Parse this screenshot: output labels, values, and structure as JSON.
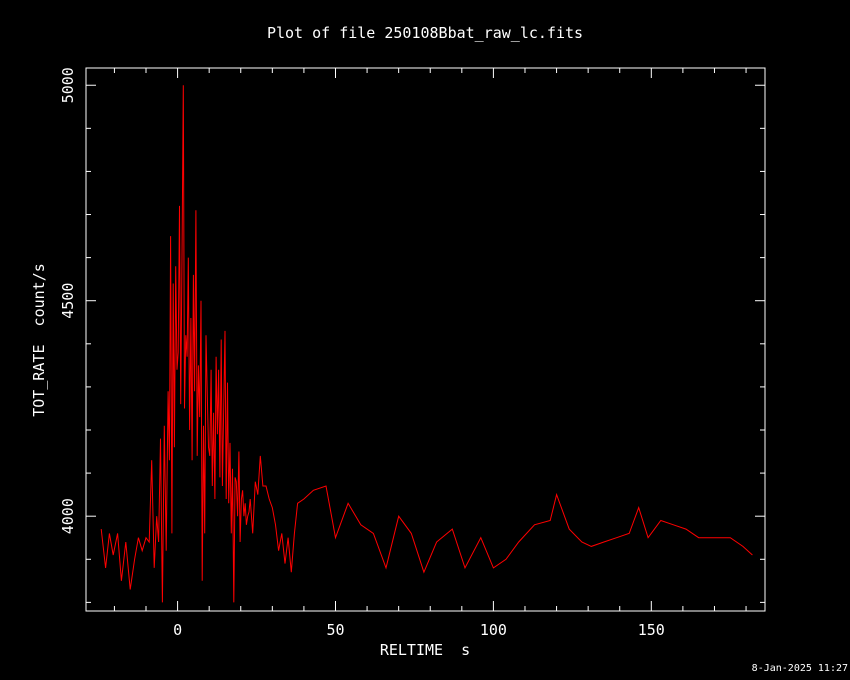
{
  "chart_data": {
    "type": "line",
    "title": "Plot of file 250108Bbat_raw_lc.fits",
    "xlabel": "RELTIME  s",
    "ylabel": "TOT_RATE  count/s",
    "xlim": [
      -29,
      186
    ],
    "ylim": [
      3780,
      5040
    ],
    "xticks": [
      "0",
      "50",
      "100",
      "150"
    ],
    "yticks": [
      "4000",
      "4500",
      "5000"
    ],
    "grid": false,
    "series": [
      {
        "color": "#ff0000",
        "x": [
          -24.2,
          -22.8,
          -21.6,
          -20.4,
          -19.0,
          -17.8,
          -16.4,
          -15.0,
          -13.6,
          -12.4,
          -11.2,
          -10.0,
          -9.0,
          -8.2,
          -7.4,
          -6.6,
          -6.0,
          -5.4,
          -4.8,
          -4.2,
          -3.6,
          -3.0,
          -2.6,
          -2.2,
          -1.8,
          -1.4,
          -1.0,
          -0.6,
          -0.2,
          0.2,
          0.6,
          1.0,
          1.4,
          1.8,
          2.2,
          2.6,
          3.0,
          3.4,
          3.8,
          4.2,
          4.6,
          5.0,
          5.4,
          5.8,
          6.2,
          6.6,
          7.0,
          7.4,
          7.8,
          8.2,
          8.6,
          9.0,
          9.4,
          9.8,
          10.2,
          10.6,
          11.0,
          11.4,
          11.8,
          12.2,
          12.6,
          13.0,
          13.4,
          13.8,
          14.2,
          14.6,
          15.0,
          15.4,
          15.8,
          16.2,
          16.6,
          17.0,
          17.4,
          17.8,
          18.2,
          18.6,
          19.0,
          19.4,
          19.8,
          20.2,
          20.6,
          21.0,
          21.4,
          21.8,
          22.2,
          22.6,
          23.0,
          23.8,
          24.6,
          25.4,
          26.2,
          27.0,
          28.0,
          29.0,
          30.0,
          31.0,
          32.0,
          33.0,
          34.0,
          35.0,
          36.0,
          37.0,
          38.0,
          40.0,
          43.0,
          47.0,
          50.0,
          54.0,
          58.0,
          62.0,
          66.0,
          70.0,
          74.0,
          78.0,
          82.0,
          87.0,
          91.0,
          96.0,
          100.0,
          104.0,
          108.0,
          113.0,
          118.0,
          120.0,
          124.0,
          128.0,
          131.0,
          135.0,
          139.0,
          143.0,
          146.0,
          149.0,
          153.0,
          157.0,
          161.0,
          165.0,
          170.0,
          175.0,
          179.0,
          182.0
        ],
        "y": [
          3970,
          3880,
          3960,
          3910,
          3960,
          3850,
          3940,
          3830,
          3900,
          3950,
          3920,
          3950,
          3940,
          4130,
          3880,
          4000,
          3940,
          4180,
          3800,
          4210,
          3920,
          4290,
          4130,
          4650,
          3960,
          4540,
          4160,
          4580,
          4340,
          4380,
          4720,
          4260,
          4600,
          5000,
          4250,
          4420,
          4370,
          4600,
          4200,
          4460,
          4130,
          4560,
          4290,
          4710,
          4140,
          4350,
          4230,
          4500,
          3850,
          4210,
          3960,
          4420,
          4280,
          4160,
          4140,
          4340,
          4070,
          4240,
          4040,
          4370,
          4190,
          4340,
          4090,
          4410,
          4070,
          4250,
          4430,
          4040,
          4310,
          4030,
          4170,
          3960,
          4110,
          3800,
          4090,
          4080,
          4000,
          4150,
          3940,
          4040,
          4060,
          4000,
          4030,
          3980,
          4000,
          4010,
          4040,
          3960,
          4080,
          4050,
          4140,
          4070,
          4070,
          4040,
          4020,
          3980,
          3920,
          3960,
          3890,
          3950,
          3870,
          3960,
          4030,
          4040,
          4060,
          4070,
          3950,
          4030,
          3980,
          3960,
          3880,
          4000,
          3960,
          3870,
          3940,
          3970,
          3880,
          3950,
          3880,
          3900,
          3940,
          3980,
          3990,
          4050,
          3970,
          3940,
          3930,
          3940,
          3950,
          3960,
          4020,
          3950,
          3990,
          3980,
          3970,
          3950,
          3950,
          3950,
          3930,
          3910
        ]
      }
    ],
    "timestamp": "8-Jan-2025 11:27"
  }
}
